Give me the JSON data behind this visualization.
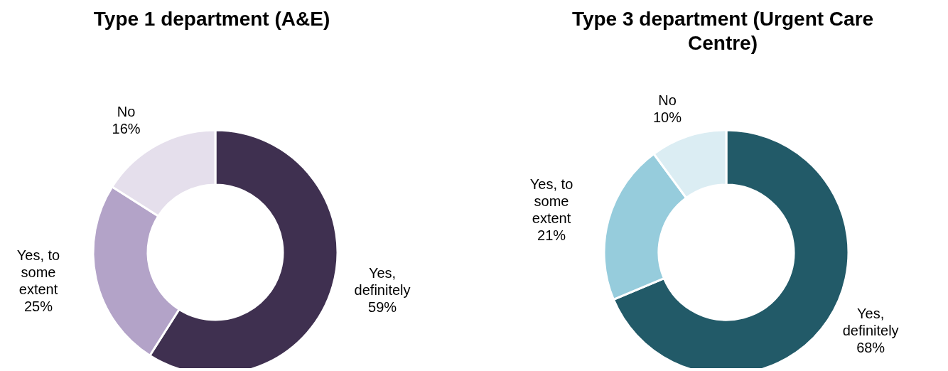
{
  "chart_data": [
    {
      "type": "donut",
      "title": "Type 1 department (A&E)",
      "categories": [
        "Yes, definitely",
        "Yes, to some extent",
        "No"
      ],
      "values": [
        59,
        25,
        16
      ],
      "colors": [
        "#3f3050",
        "#b3a3c8",
        "#e5dfec"
      ],
      "value_labels": [
        "59%",
        "25%",
        "16%"
      ]
    },
    {
      "type": "donut",
      "title": "Type 3 department (Urgent Care Centre)",
      "categories": [
        "Yes, definitely",
        "Yes, to some extent",
        "No"
      ],
      "values": [
        68,
        21,
        10
      ],
      "colors": [
        "#225a68",
        "#96ccdc",
        "#dbedf3"
      ],
      "value_labels": [
        "68%",
        "21%",
        "10%"
      ]
    }
  ]
}
